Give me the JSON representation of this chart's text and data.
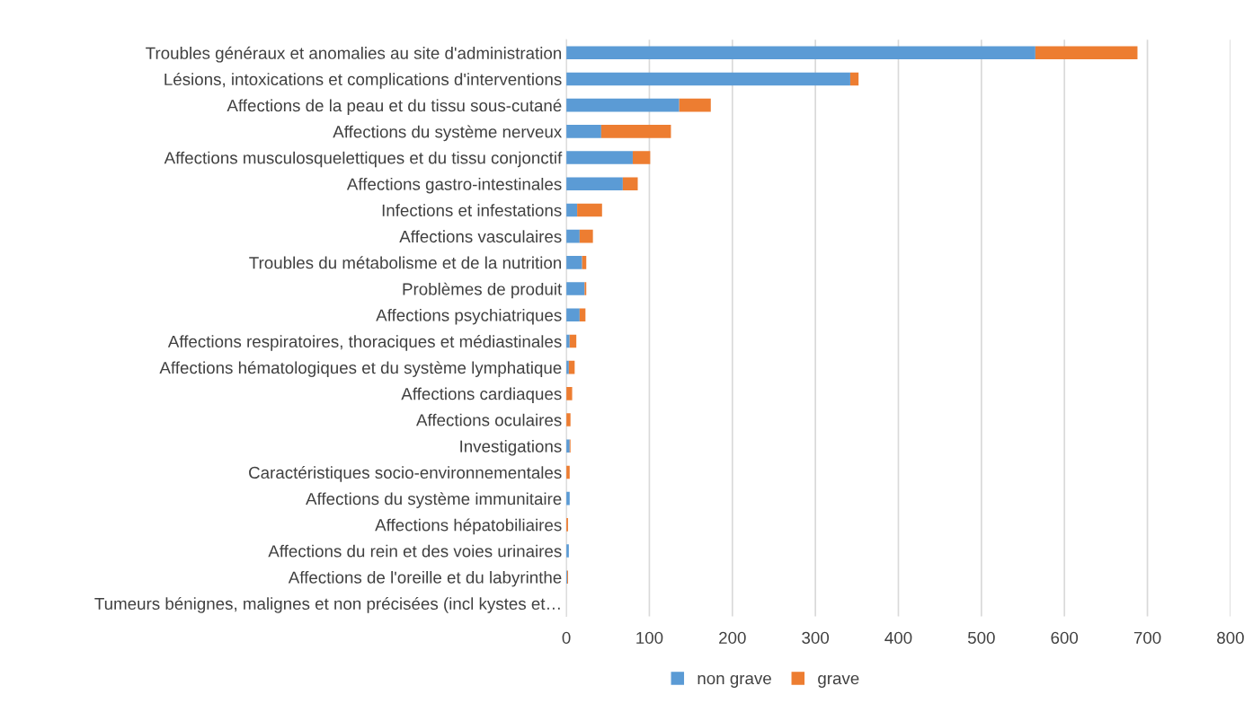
{
  "chart_data": {
    "type": "bar",
    "orientation": "horizontal",
    "stacked": true,
    "categories": [
      "Troubles généraux et anomalies au site d'administration",
      "Lésions, intoxications et complications d'interventions",
      "Affections de la peau et du tissu sous-cutané",
      "Affections du système nerveux",
      "Affections musculosquelettiques et du tissu conjonctif",
      "Affections gastro-intestinales",
      "Infections et infestations",
      "Affections vasculaires",
      "Troubles du métabolisme et de la nutrition",
      "Problèmes de produit",
      "Affections psychiatriques",
      "Affections respiratoires, thoraciques et médiastinales",
      "Affections hématologiques et du système lymphatique",
      "Affections cardiaques",
      "Affections oculaires",
      "Investigations",
      "Caractéristiques socio-environnementales",
      "Affections du système immunitaire",
      "Affections hépatobiliaires",
      "Affections du rein et des voies urinaires",
      "Affections de l'oreille et du labyrinthe",
      "Tumeurs bénignes, malignes et non précisées (incl kystes et…"
    ],
    "series": [
      {
        "name": "non grave",
        "color": "#5b9bd5",
        "values": [
          565,
          342,
          136,
          42,
          80,
          68,
          13,
          16,
          19,
          22,
          16,
          4,
          3,
          null,
          null,
          4,
          null,
          4,
          null,
          3,
          1,
          0
        ]
      },
      {
        "name": "grave",
        "color": "#ed7d31",
        "values": [
          123,
          10,
          38,
          84,
          21,
          18,
          30,
          16,
          5,
          2,
          7,
          8,
          7,
          7,
          5,
          1,
          4,
          0,
          2,
          0,
          1,
          0
        ]
      }
    ],
    "xlim": [
      0,
      800
    ],
    "xticks": [
      0,
      100,
      200,
      300,
      400,
      500,
      600,
      700,
      800
    ],
    "grid": "x",
    "legend": "bottom"
  }
}
